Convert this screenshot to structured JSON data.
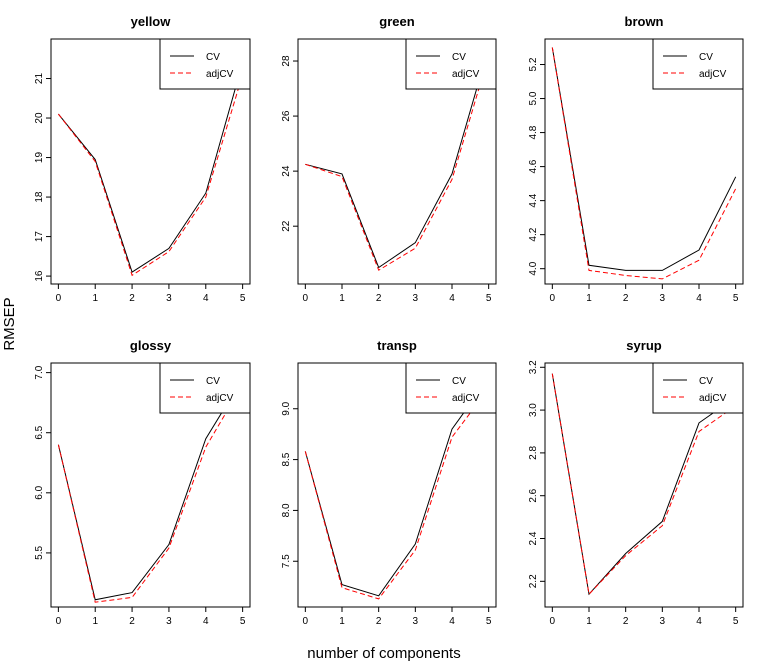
{
  "chart_data": {
    "type": "line",
    "xlabel": "number of components",
    "ylabel": "RMSEP",
    "legend_placement": "top-right",
    "series_styles": [
      {
        "name": "CV",
        "color": "#000000",
        "dash": "solid"
      },
      {
        "name": "adjCV",
        "color": "#ff0000",
        "dash": "dashed"
      }
    ],
    "panels": [
      {
        "title": "yellow",
        "x": [
          0,
          1,
          2,
          3,
          4,
          5
        ],
        "xticks": [
          "0",
          "1",
          "2",
          "3",
          "4",
          "5"
        ],
        "ylim": [
          15.8,
          22.0
        ],
        "yticks": [
          "16",
          "17",
          "18",
          "19",
          "20",
          "21"
        ],
        "series": [
          {
            "name": "CV",
            "values": [
              20.1,
              18.95,
              16.1,
              16.7,
              18.1,
              21.4
            ]
          },
          {
            "name": "adjCV",
            "values": [
              20.1,
              18.9,
              16.02,
              16.62,
              18.0,
              21.1
            ]
          }
        ]
      },
      {
        "title": "green",
        "x": [
          0,
          1,
          2,
          3,
          4,
          5
        ],
        "xticks": [
          "0",
          "1",
          "2",
          "3",
          "4",
          "5"
        ],
        "ylim": [
          19.9,
          28.8
        ],
        "yticks": [
          "22",
          "24",
          "26",
          "28"
        ],
        "series": [
          {
            "name": "CV",
            "values": [
              24.25,
              23.9,
              20.5,
              21.4,
              23.9,
              28.5
            ]
          },
          {
            "name": "adjCV",
            "values": [
              24.25,
              23.8,
              20.4,
              21.2,
              23.7,
              28.2
            ]
          }
        ]
      },
      {
        "title": "brown",
        "x": [
          0,
          1,
          2,
          3,
          4,
          5
        ],
        "xticks": [
          "0",
          "1",
          "2",
          "3",
          "4",
          "5"
        ],
        "ylim": [
          3.91,
          5.35
        ],
        "yticks": [
          "4.0",
          "4.2",
          "4.4",
          "4.6",
          "4.8",
          "5.0",
          "5.2"
        ],
        "series": [
          {
            "name": "CV",
            "values": [
              5.3,
              4.02,
              3.99,
              3.99,
              4.11,
              4.54
            ]
          },
          {
            "name": "adjCV",
            "values": [
              5.3,
              3.99,
              3.96,
              3.94,
              4.05,
              4.47
            ]
          }
        ]
      },
      {
        "title": "glossy",
        "x": [
          0,
          1,
          2,
          3,
          4,
          5
        ],
        "xticks": [
          "0",
          "1",
          "2",
          "3",
          "4",
          "5"
        ],
        "ylim": [
          5.05,
          7.08
        ],
        "yticks": [
          "5.5",
          "6.0",
          "6.5",
          "7.0"
        ],
        "series": [
          {
            "name": "CV",
            "values": [
              6.4,
              5.11,
              5.17,
              5.57,
              6.45,
              6.95
            ]
          },
          {
            "name": "adjCV",
            "values": [
              6.4,
              5.09,
              5.13,
              5.54,
              6.38,
              6.9
            ]
          }
        ]
      },
      {
        "title": "transp",
        "x": [
          0,
          1,
          2,
          3,
          4,
          5
        ],
        "xticks": [
          "0",
          "1",
          "2",
          "3",
          "4",
          "5"
        ],
        "ylim": [
          7.05,
          9.45
        ],
        "yticks": [
          "7.5",
          "8.0",
          "8.5",
          "9.0"
        ],
        "series": [
          {
            "name": "CV",
            "values": [
              8.58,
              7.27,
              7.16,
              7.67,
              8.8,
              9.3
            ]
          },
          {
            "name": "adjCV",
            "values": [
              8.58,
              7.24,
              7.13,
              7.61,
              8.72,
              9.2
            ]
          }
        ]
      },
      {
        "title": "syrup",
        "x": [
          0,
          1,
          2,
          3,
          4,
          5
        ],
        "xticks": [
          "0",
          "1",
          "2",
          "3",
          "4",
          "5"
        ],
        "ylim": [
          2.08,
          3.22
        ],
        "yticks": [
          "2.2",
          "2.4",
          "2.6",
          "2.8",
          "3.0",
          "3.2"
        ],
        "series": [
          {
            "name": "CV",
            "values": [
              3.17,
              2.14,
              2.33,
              2.48,
              2.94,
              3.06
            ]
          },
          {
            "name": "adjCV",
            "values": [
              3.17,
              2.14,
              2.32,
              2.46,
              2.9,
              3.02
            ]
          }
        ]
      }
    ]
  }
}
